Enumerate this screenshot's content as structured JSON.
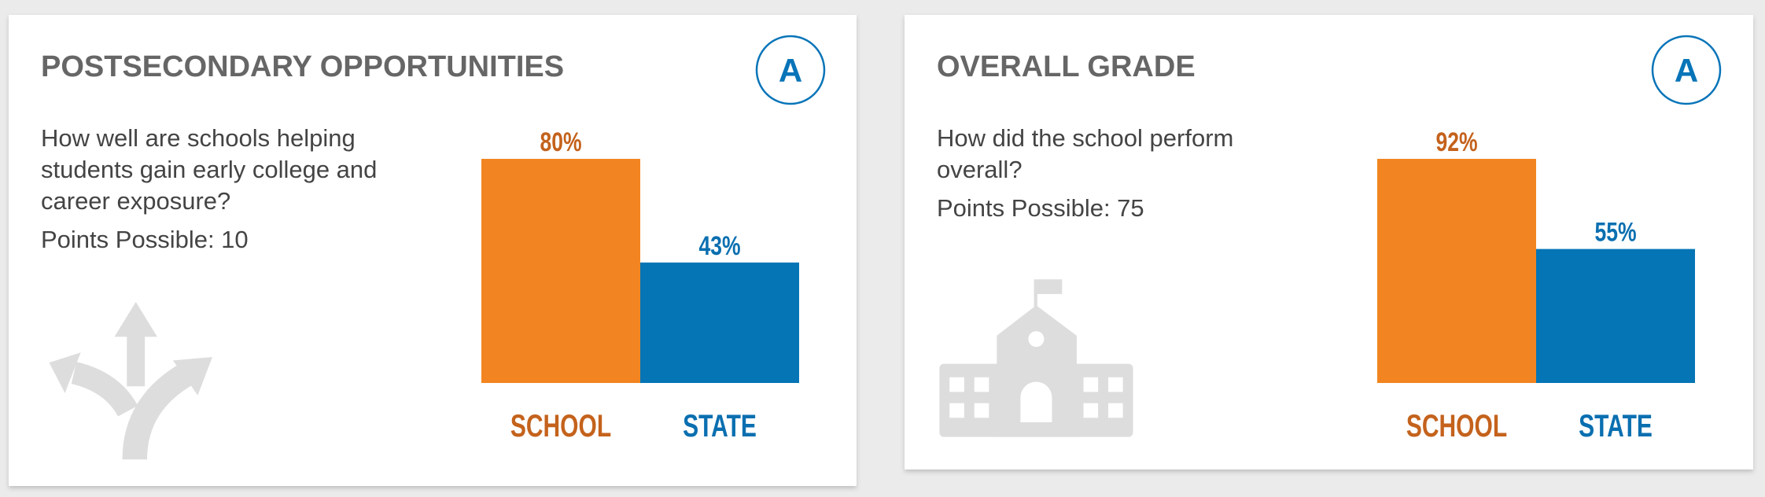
{
  "cards": [
    {
      "title": "POSTSECONDARY OPPORTUNITIES",
      "grade": "A",
      "description": [
        "How well are schools helping",
        "students gain early college and",
        "career exposure?"
      ],
      "points": "Points Possible: 10"
    },
    {
      "title": "OVERALL GRADE",
      "grade": "A",
      "description": [
        "How did the school perform",
        "overall?"
      ],
      "points": "Points Possible: 75"
    }
  ],
  "chart_data": [
    {
      "type": "bar",
      "categories": [
        "SCHOOL",
        "STATE"
      ],
      "values": [
        80,
        43
      ],
      "value_labels": [
        "80%",
        "43%"
      ],
      "colors": [
        "#f28521",
        "#0575b6"
      ],
      "label_colors": [
        "#c4621c",
        "#0a6fb0"
      ]
    },
    {
      "type": "bar",
      "categories": [
        "SCHOOL",
        "STATE"
      ],
      "values": [
        92,
        55
      ],
      "value_labels": [
        "92%",
        "55%"
      ],
      "colors": [
        "#f28521",
        "#0575b6"
      ],
      "label_colors": [
        "#c4621c",
        "#0a6fb0"
      ]
    }
  ]
}
